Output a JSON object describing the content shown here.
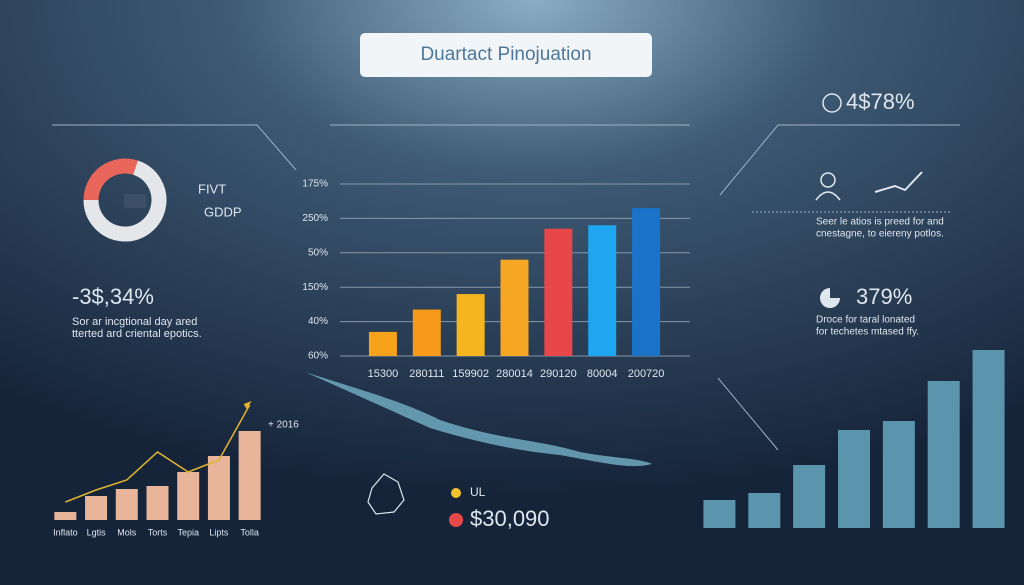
{
  "header": {
    "title": "Duartact Pinojuation"
  },
  "left_stat": {
    "value": "-3$,34%",
    "lines": [
      "Sor ar incgtional day ared",
      "tterted ard criental epotics."
    ]
  },
  "right_top": {
    "value": "4$78%",
    "lines": [
      "Seer le atios is preed for and",
      "cnestagne, to eiereny potlos."
    ]
  },
  "right_mid": {
    "value": "379%",
    "lines": [
      "Droce for taral lonated",
      "for techetes mtased ffy."
    ]
  },
  "legend": [
    {
      "label": "UL",
      "color": "#f2c12e"
    },
    {
      "label": "$30,090",
      "color": "#e8474a"
    }
  ],
  "chart_data": [
    {
      "type": "pie",
      "values": [
        30,
        70
      ],
      "colors": [
        "#e8665a",
        "#e4e6ea"
      ],
      "labels": [
        "FIVT",
        "GDDP"
      ]
    },
    {
      "type": "bar",
      "categories": [
        "15300",
        "280111",
        "159902",
        "280014",
        "290120",
        "80004",
        "200720"
      ],
      "values": [
        0.7,
        1.35,
        1.8,
        2.8,
        3.7,
        3.8,
        4.3
      ],
      "colors": [
        "#f7a21b",
        "#f79a1b",
        "#f5b51e",
        "#f5a623",
        "#e8474a",
        "#1ea7f0",
        "#1a73c8"
      ],
      "ylim": [
        0,
        5
      ],
      "yticks": [
        {
          "value": 0,
          "label": "60%"
        },
        {
          "value": 1,
          "label": "40%"
        },
        {
          "value": 2,
          "label": "150%"
        },
        {
          "value": 3,
          "label": "50%"
        },
        {
          "value": 4,
          "label": "250%"
        },
        {
          "value": 5,
          "label": "175%"
        }
      ],
      "grid": true
    },
    {
      "type": "bar",
      "categories": [
        "Inflato",
        "Lgtis",
        "Mols",
        "Torts",
        "Tepia",
        "Lipts",
        "Tolla"
      ],
      "values": [
        8,
        24,
        31,
        34,
        48,
        64,
        89
      ],
      "color": "#e8b49a",
      "line_values": [
        18,
        30,
        40,
        68,
        48,
        60,
        115
      ],
      "line_color": "#e0b430",
      "annotation": "+ 2016"
    },
    {
      "type": "bar",
      "categories": [
        null,
        null,
        null,
        null,
        null,
        null,
        null
      ],
      "values": [
        28,
        35,
        63,
        98,
        107,
        147,
        178
      ],
      "color": "#5b94ad"
    }
  ]
}
